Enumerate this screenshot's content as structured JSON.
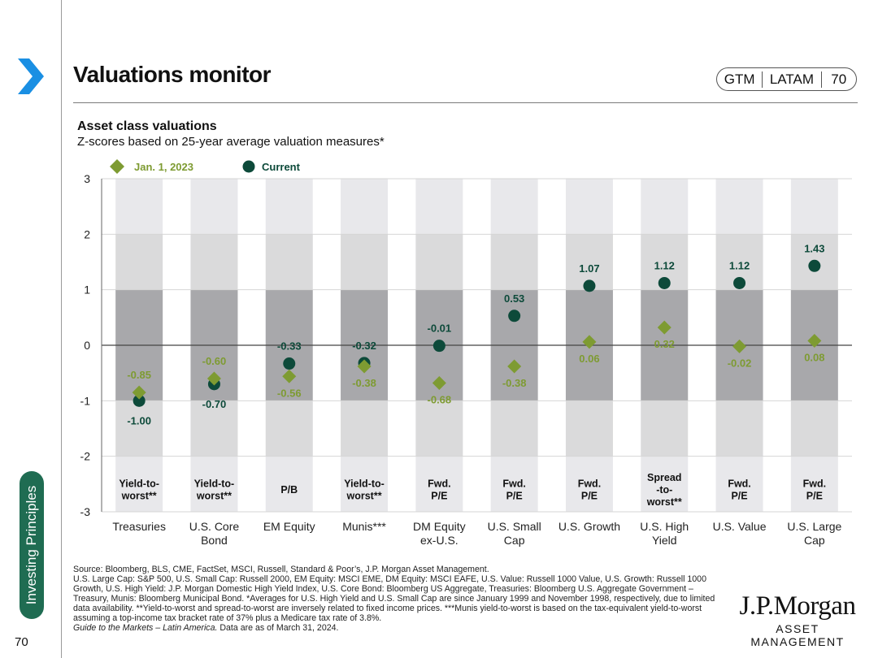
{
  "header": {
    "title": "Valuations monitor",
    "tag": [
      "GTM",
      "LATAM",
      "70"
    ]
  },
  "sidebar": {
    "label": "Investing Principles",
    "page_number": "70"
  },
  "colors": {
    "current": "#0d4a3a",
    "jan2023": "#7e9b32",
    "band_dark": "#a8a8ab",
    "band_mid": "#dadadb",
    "band_light": "#e8e8eb",
    "accent_blue": "#1a8fe3",
    "sidebar_green": "#1f6c52"
  },
  "chart_data": {
    "type": "scatter",
    "title": "Asset class valuations",
    "subtitle": "Z-scores based on 25-year average valuation measures*",
    "ylim": [
      -3,
      3
    ],
    "yticks": [
      "3",
      "2",
      "1",
      "0",
      "-1",
      "-2",
      "-3"
    ],
    "legend": {
      "position": "top-left",
      "items": [
        "Jan. 1, 2023",
        "Current"
      ]
    },
    "categories": [
      {
        "name": [
          "Treasuries"
        ],
        "measure": [
          "Yield-to-",
          "worst**"
        ]
      },
      {
        "name": [
          "U.S. Core",
          "Bond"
        ],
        "measure": [
          "Yield-to-",
          "worst**"
        ]
      },
      {
        "name": [
          "EM Equity"
        ],
        "measure": [
          "P/B"
        ]
      },
      {
        "name": [
          "Munis***"
        ],
        "measure": [
          "Yield-to-",
          "worst**"
        ]
      },
      {
        "name": [
          "DM Equity",
          "ex-U.S."
        ],
        "measure": [
          "Fwd.",
          "P/E"
        ]
      },
      {
        "name": [
          "U.S. Small",
          "Cap"
        ],
        "measure": [
          "Fwd.",
          "P/E"
        ]
      },
      {
        "name": [
          "U.S. Growth"
        ],
        "measure": [
          "Fwd.",
          "P/E"
        ]
      },
      {
        "name": [
          "U.S. High",
          "Yield"
        ],
        "measure": [
          "Spread",
          "-to-",
          "worst**"
        ]
      },
      {
        "name": [
          "U.S. Value"
        ],
        "measure": [
          "Fwd.",
          "P/E"
        ]
      },
      {
        "name": [
          "U.S. Large",
          "Cap"
        ],
        "measure": [
          "Fwd.",
          "P/E"
        ]
      }
    ],
    "series": [
      {
        "name": "Current",
        "values": [
          -1.0,
          -0.7,
          -0.33,
          -0.32,
          -0.01,
          0.53,
          1.07,
          1.12,
          1.12,
          1.43
        ],
        "labels": [
          "-1.00",
          "-0.70",
          "-0.33",
          "-0.32",
          "-0.01",
          "0.53",
          "1.07",
          "1.12",
          "1.12",
          "1.43"
        ]
      },
      {
        "name": "Jan. 1, 2023",
        "values": [
          -0.85,
          -0.6,
          -0.56,
          -0.38,
          -0.68,
          -0.38,
          0.06,
          0.32,
          -0.02,
          0.08
        ],
        "labels": [
          "-0.85",
          "-0.60",
          "-0.56",
          "-0.38",
          "-0.68",
          "-0.38",
          "0.06",
          "0.32",
          "-0.02",
          "0.08"
        ]
      }
    ]
  },
  "footnotes": {
    "source": "Source: Bloomberg, BLS, CME, FactSet, MSCI, Russell, Standard & Poor’s, J.P. Morgan Asset Management.",
    "body": "U.S. Large Cap: S&P 500, U.S. Small Cap: Russell 2000, EM Equity: MSCI EME, DM Equity: MSCI EAFE, U.S. Value: Russell 1000 Value, U.S. Growth: Russell 1000 Growth, U.S. High Yield: J.P. Morgan Domestic High Yield Index, U.S. Core Bond: Bloomberg US Aggregate, Treasuries: Bloomberg U.S. Aggregate Government – Treasury, Munis: Bloomberg Municipal Bond. *Averages for U.S. High Yield and U.S. Small Cap are since January 1999 and November 1998, respectively, due to limited data availability. **Yield-to-worst and spread-to-worst are inversely related to fixed income prices. ***Munis yield-to-worst is based on the tax-equivalent yield-to-worst assuming a top-income tax bracket rate of 37% plus a Medicare tax rate of 3.8%.",
    "guide_title": "Guide to the Markets – Latin America.",
    "guide_date": "Data are as of March 31, 2024."
  },
  "logo": {
    "name": "J.P.Morgan",
    "sub": "ASSET MANAGEMENT"
  }
}
